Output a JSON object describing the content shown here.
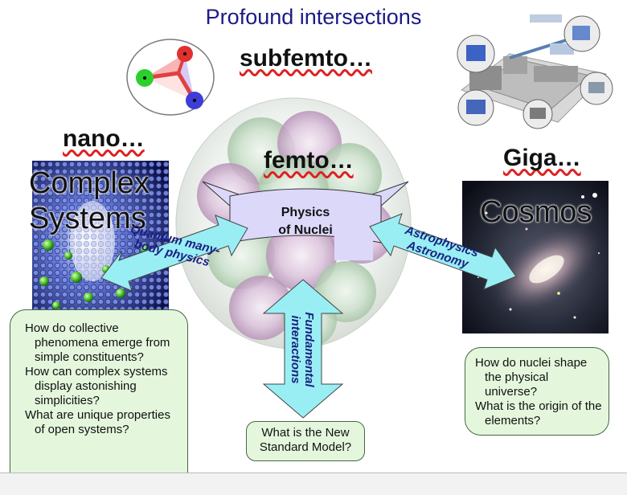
{
  "title": "Profound intersections",
  "scales": {
    "subfemto": "subfemto…",
    "femto": "femto…",
    "nano": "nano…",
    "giga": "Giga…"
  },
  "left_panel": {
    "label_line1": "Complex",
    "label_line2": "Systems"
  },
  "right_panel": {
    "label": "Cosmos"
  },
  "banner": {
    "line1": "Physics",
    "line2": "of Nuclei"
  },
  "arrows": {
    "left": {
      "line1": "Quantum many-",
      "line2": "body physics"
    },
    "right": {
      "line1": "Astrophysics",
      "line2": "Astronomy"
    },
    "bottom": {
      "line1": "Fundamental",
      "line2": "interactions"
    }
  },
  "questions": {
    "left": [
      "How do collective phenomena emerge from simple constituents?",
      "How can complex systems display astonishing simplicities?",
      "What are unique properties of open systems?"
    ],
    "right": [
      "How do nuclei shape the physical universe?",
      "What is the origin of the elements?"
    ],
    "bottom": "What is the New Standard Model?"
  },
  "colors": {
    "title": "#1b1b86",
    "arrow_fill": "#99eef4",
    "banner_fill": "#dcd8fa",
    "question_box": "#e4f7dc"
  }
}
